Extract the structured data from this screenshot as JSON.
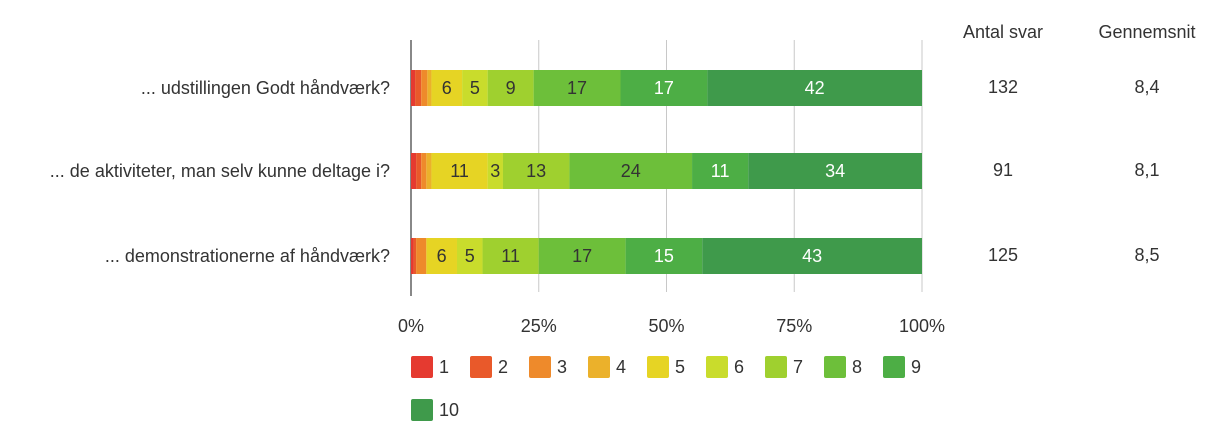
{
  "chart_data": {
    "type": "stacked_bar_horizontal",
    "categories": [
      "... udstillingen Godt håndværk?",
      "... de aktiviteter, man selv kunne deltage i?",
      "... demonstrationerne af håndværk?"
    ],
    "series": [
      {
        "name": "1",
        "color": "#e53a30",
        "values": [
          0.8,
          1,
          0.5
        ]
      },
      {
        "name": "2",
        "color": "#e9592a",
        "values": [
          1.2,
          1,
          0.5
        ]
      },
      {
        "name": "3",
        "color": "#ee8a2b",
        "values": [
          1.2,
          1,
          2
        ]
      },
      {
        "name": "4",
        "color": "#ebb12b",
        "values": [
          0.8,
          1,
          0
        ]
      },
      {
        "name": "5",
        "color": "#e6d424",
        "values": [
          6,
          11,
          6
        ]
      },
      {
        "name": "6",
        "color": "#c9dc2c",
        "values": [
          5,
          3,
          5
        ]
      },
      {
        "name": "7",
        "color": "#9fd02f",
        "values": [
          9,
          13,
          11
        ]
      },
      {
        "name": "8",
        "color": "#6dbf3a",
        "values": [
          17,
          24,
          17
        ]
      },
      {
        "name": "9",
        "color": "#4dae45",
        "values": [
          17,
          11,
          15
        ]
      },
      {
        "name": "10",
        "color": "#3f9a4b",
        "values": [
          42,
          34,
          43
        ]
      }
    ],
    "xlim": [
      0,
      100
    ],
    "xticks": [
      {
        "value": 0,
        "label": "0%"
      },
      {
        "value": 25,
        "label": "25%"
      },
      {
        "value": 50,
        "label": "50%"
      },
      {
        "value": 75,
        "label": "75%"
      },
      {
        "value": 100,
        "label": "100%"
      }
    ],
    "grid": true,
    "columns": [
      {
        "title": "Antal svar",
        "values": [
          132,
          91,
          125
        ]
      },
      {
        "title": "Gennemsnit",
        "values": [
          8.4,
          8.1,
          8.5
        ],
        "value_labels": [
          "8,4",
          "8,1",
          "8,5"
        ]
      }
    ]
  }
}
